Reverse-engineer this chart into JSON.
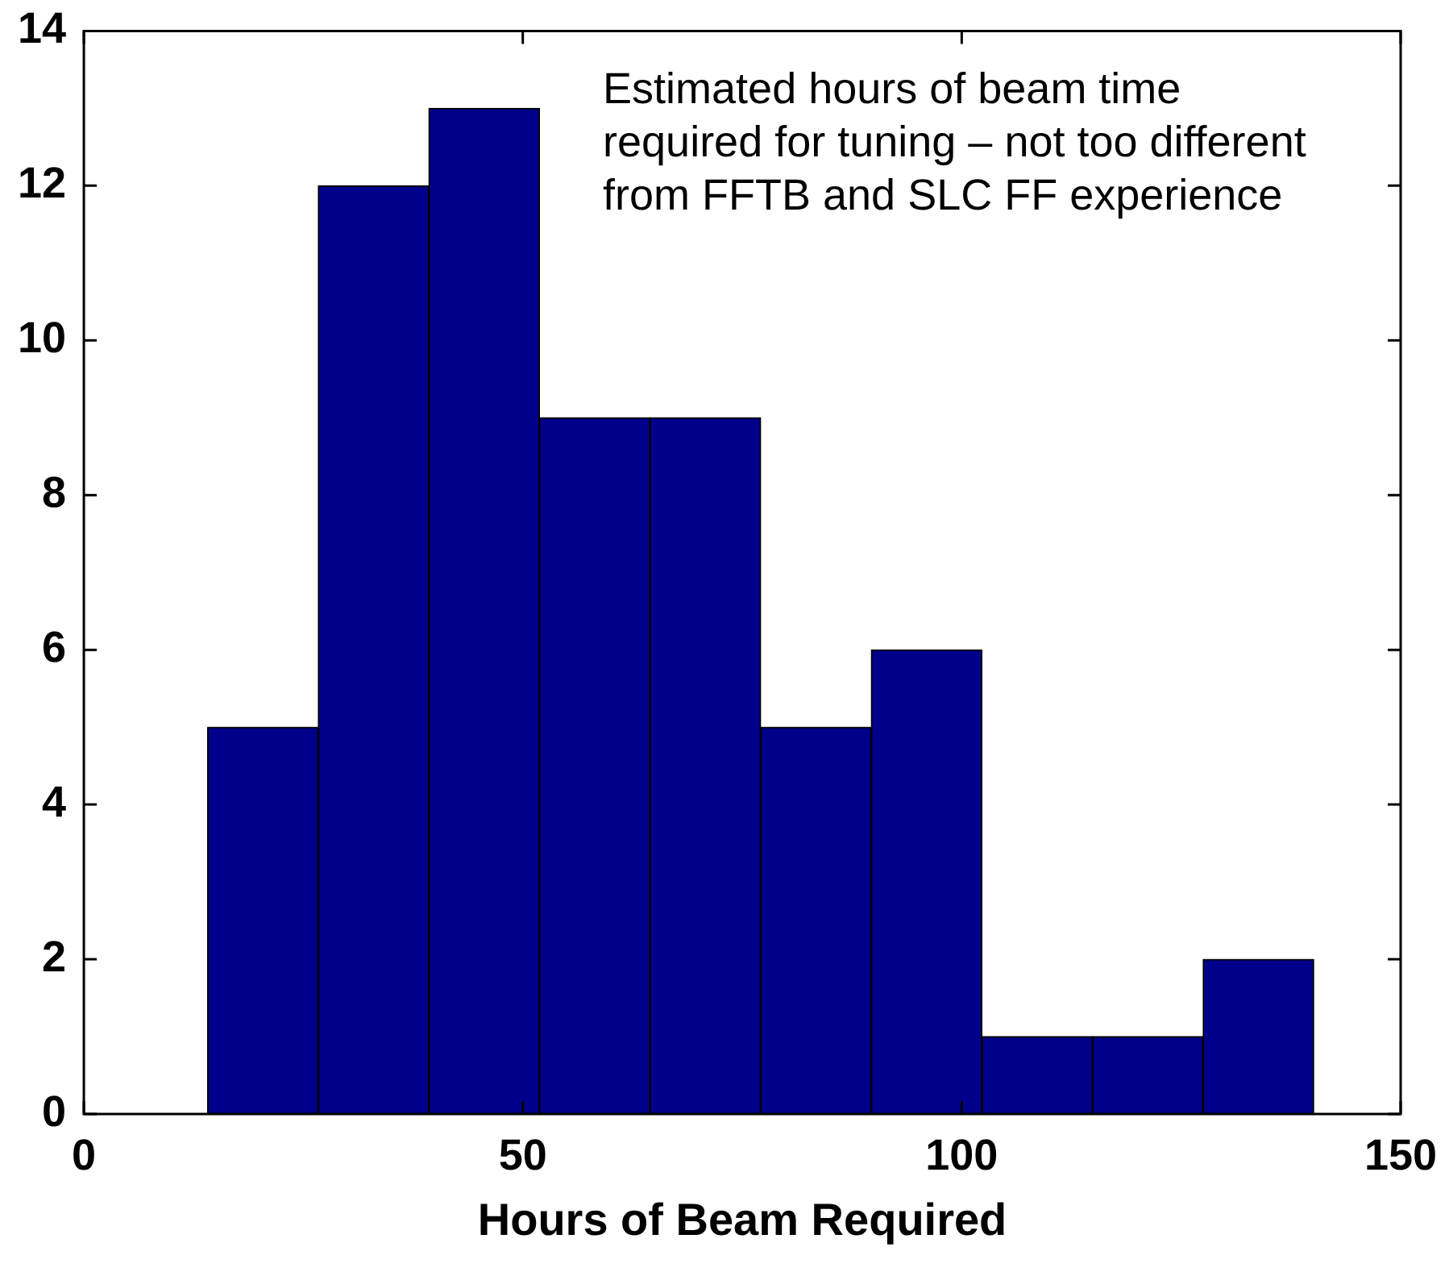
{
  "chart_data": {
    "type": "histogram",
    "xlabel": "Hours of Beam Required",
    "bins": [
      14.1,
      26.7,
      39.3,
      51.9,
      64.5,
      77.1,
      89.7,
      102.3,
      114.9,
      127.5,
      140.1
    ],
    "values": [
      5,
      12,
      13,
      9,
      9,
      5,
      6,
      1,
      1,
      2
    ],
    "color": "#00008b",
    "xlim": [
      0,
      150
    ],
    "xticks": [
      0,
      50,
      100,
      150
    ],
    "ylim": [
      0,
      14
    ],
    "yticks": [
      0,
      2,
      4,
      6,
      8,
      10,
      12,
      14
    ],
    "grid": false,
    "legend": false,
    "annotations": [
      "Estimated hours of beam time required for tuning – not too different from FFTB and SLC FF experience"
    ]
  }
}
